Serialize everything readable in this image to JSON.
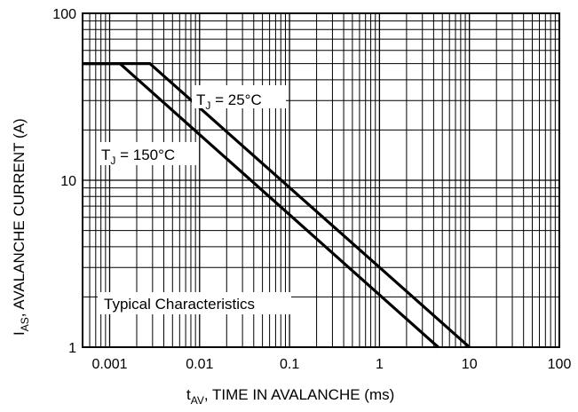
{
  "chart_data": {
    "type": "line",
    "xlabel": {
      "main": "t",
      "sub": "AV",
      "rest": ", TIME IN AVALANCHE (ms)"
    },
    "ylabel": {
      "main": "I",
      "sub": "AS",
      "rest": ", AVALANCHE CURRENT (A)"
    },
    "x_scale": "log",
    "y_scale": "log",
    "xlim": [
      0.0005,
      100
    ],
    "ylim": [
      1,
      100
    ],
    "x_ticks": [
      {
        "value": 0.001,
        "label": "0.001"
      },
      {
        "value": 0.01,
        "label": "0.01"
      },
      {
        "value": 0.1,
        "label": "0.1"
      },
      {
        "value": 1,
        "label": "1"
      },
      {
        "value": 10,
        "label": "10"
      },
      {
        "value": 100,
        "label": "100"
      }
    ],
    "y_ticks": [
      {
        "value": 1,
        "label": "1"
      },
      {
        "value": 10,
        "label": "10"
      },
      {
        "value": 100,
        "label": "100"
      }
    ],
    "grid": true,
    "series": [
      {
        "name": {
          "main": "T",
          "sub": "J",
          "rest": " = 25°C"
        },
        "points": [
          [
            0.0005,
            50
          ],
          [
            0.0028,
            50
          ],
          [
            10,
            1
          ]
        ]
      },
      {
        "name": {
          "main": "T",
          "sub": "J",
          "rest": " = 150°C"
        },
        "points": [
          [
            0.0005,
            50
          ],
          [
            0.0013,
            50
          ],
          [
            4.5,
            1
          ]
        ]
      }
    ],
    "annotations": [
      {
        "text": "Typical Characteristics"
      }
    ]
  }
}
